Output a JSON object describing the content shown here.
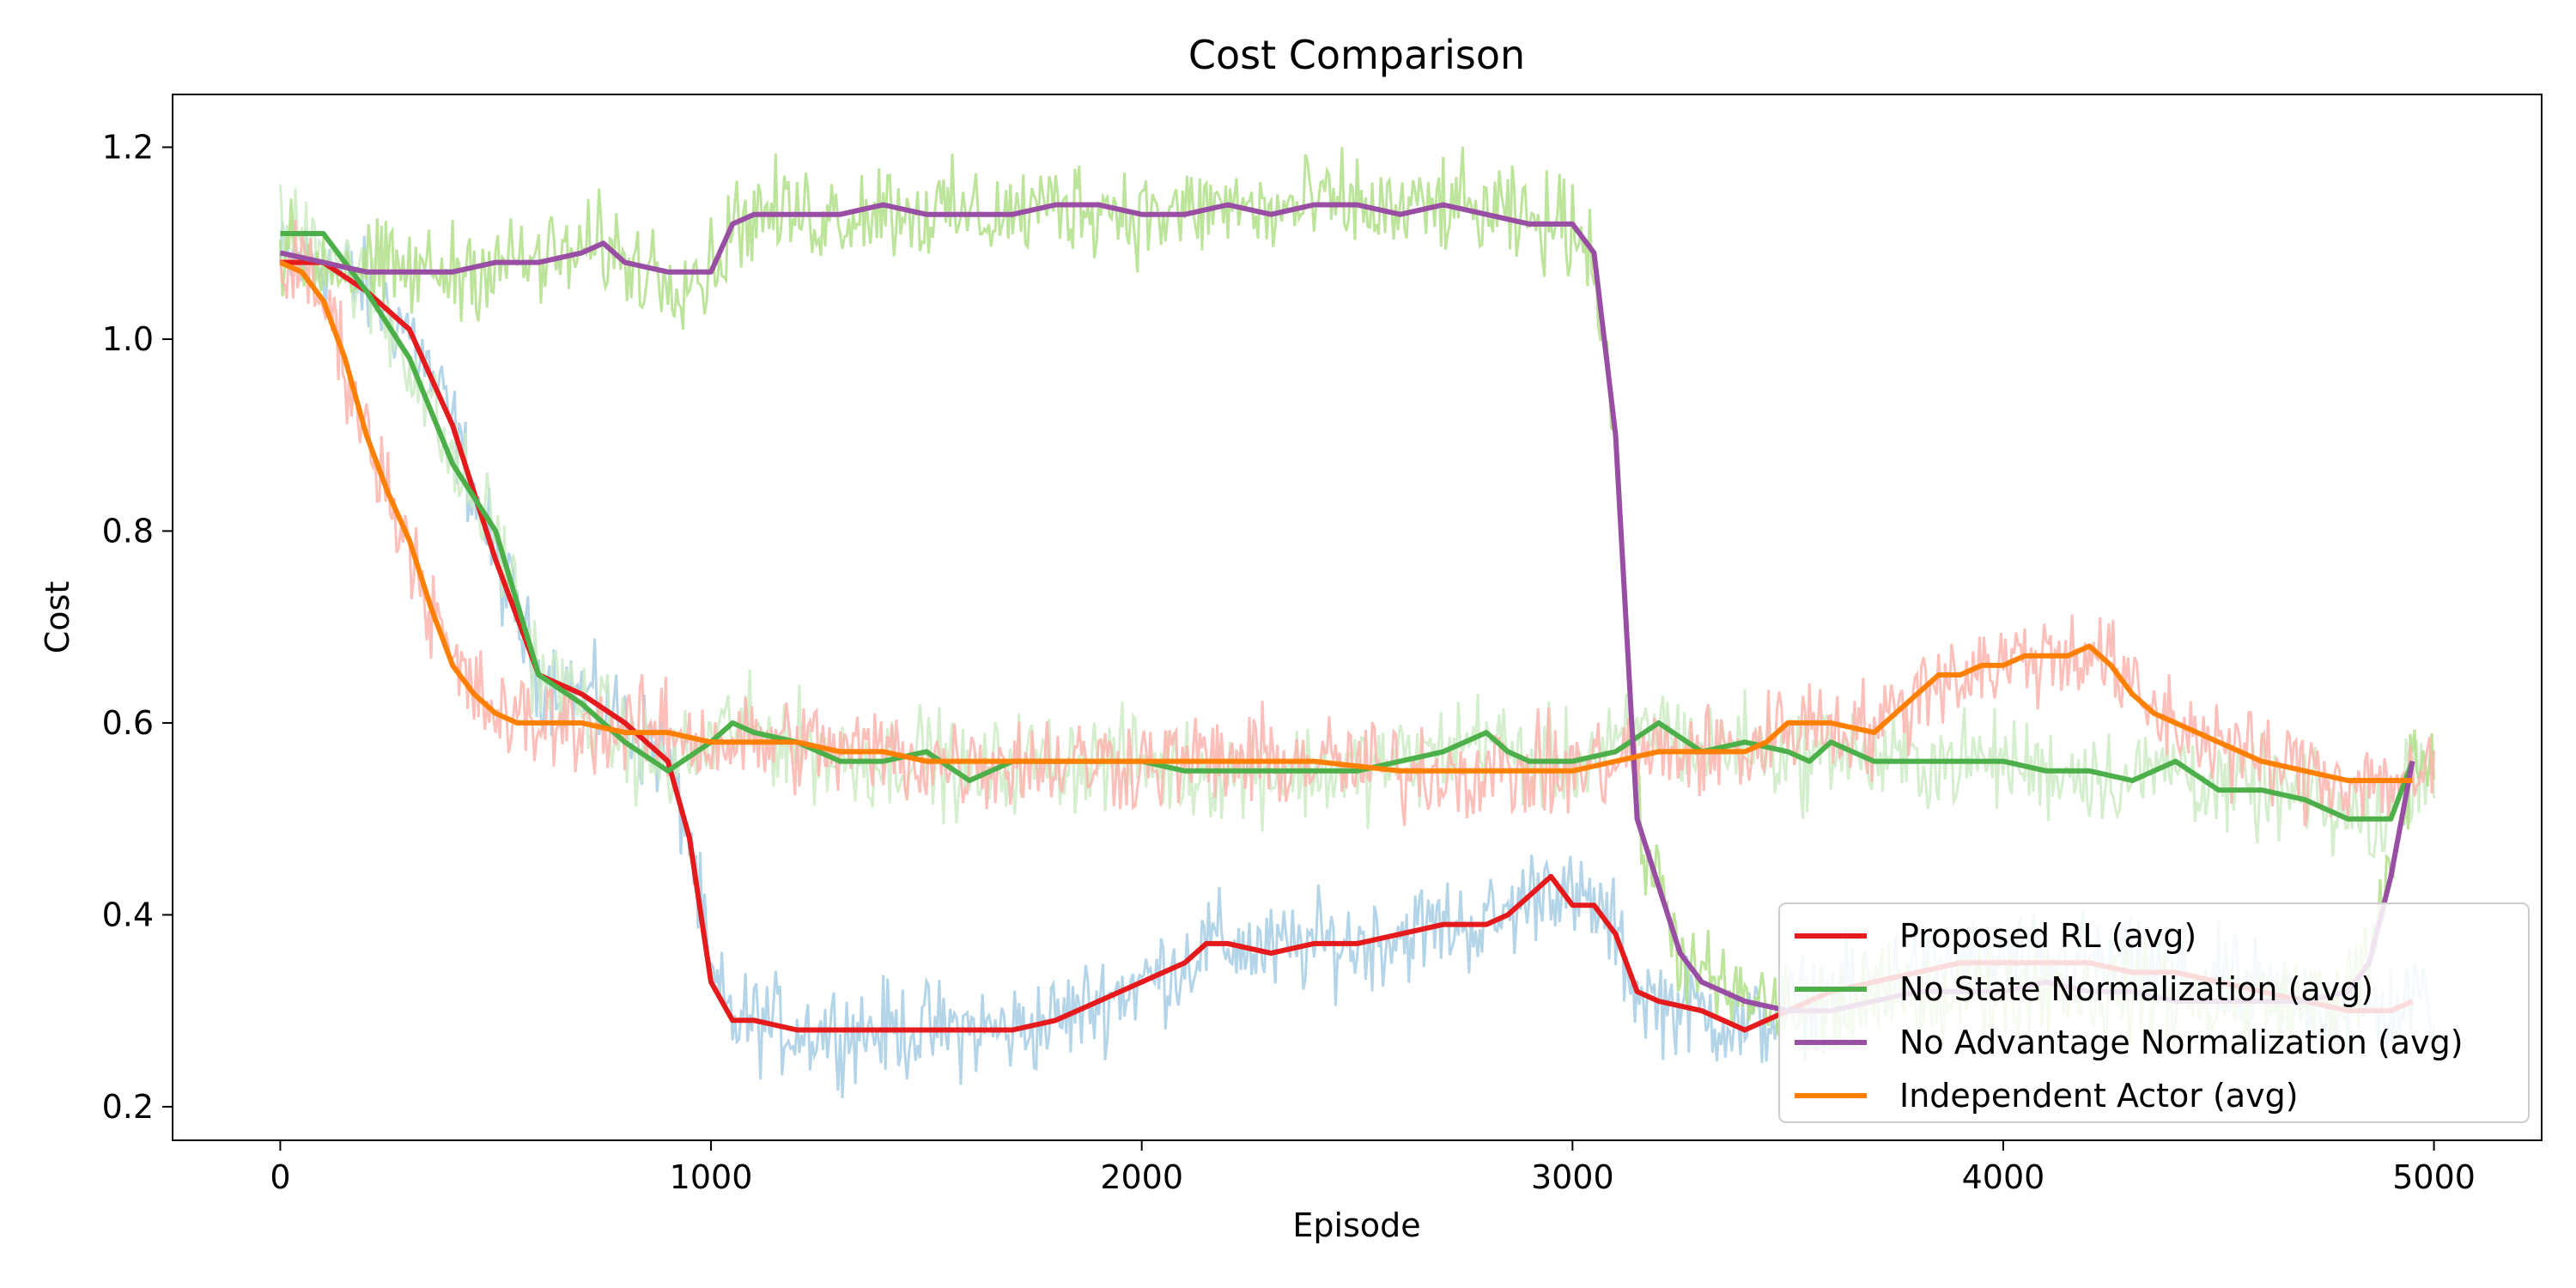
{
  "chart_data": {
    "type": "line",
    "title": "Cost Comparison",
    "xlabel": "Episode",
    "ylabel": "Cost",
    "xlim": [
      -250,
      5250
    ],
    "ylim": [
      0.165,
      1.255
    ],
    "xticks": [
      0,
      1000,
      2000,
      3000,
      4000,
      5000
    ],
    "xtick_labels": [
      "0",
      "1000",
      "2000",
      "3000",
      "4000",
      "5000"
    ],
    "yticks": [
      0.2,
      0.4,
      0.6,
      0.8,
      1.0,
      1.2
    ],
    "ytick_labels": [
      "0.2",
      "0.4",
      "0.6",
      "0.8",
      "1.0",
      "1.2"
    ],
    "grid": false,
    "legend_position": "lower-right",
    "raw_noise_amplitude": 0.025,
    "series": [
      {
        "name": "Proposed RL (avg)",
        "color": "#e41a1c",
        "raw_color": "#a6cee3",
        "x": [
          0,
          100,
          200,
          300,
          400,
          500,
          600,
          700,
          800,
          900,
          950,
          1000,
          1050,
          1100,
          1200,
          1300,
          1400,
          1500,
          1600,
          1700,
          1800,
          1900,
          2000,
          2100,
          2150,
          2200,
          2300,
          2400,
          2500,
          2600,
          2700,
          2800,
          2850,
          2900,
          2950,
          3000,
          3050,
          3100,
          3150,
          3200,
          3300,
          3400,
          3500,
          3600,
          3700,
          3800,
          3900,
          4000,
          4100,
          4200,
          4300,
          4400,
          4500,
          4600,
          4700,
          4800,
          4900,
          4950
        ],
        "y": [
          1.08,
          1.08,
          1.05,
          1.01,
          0.91,
          0.77,
          0.65,
          0.63,
          0.6,
          0.56,
          0.48,
          0.33,
          0.29,
          0.29,
          0.28,
          0.28,
          0.28,
          0.28,
          0.28,
          0.28,
          0.29,
          0.31,
          0.33,
          0.35,
          0.37,
          0.37,
          0.36,
          0.37,
          0.37,
          0.38,
          0.39,
          0.39,
          0.4,
          0.42,
          0.44,
          0.41,
          0.41,
          0.38,
          0.32,
          0.31,
          0.3,
          0.28,
          0.3,
          0.32,
          0.33,
          0.34,
          0.35,
          0.35,
          0.35,
          0.35,
          0.34,
          0.34,
          0.33,
          0.32,
          0.31,
          0.3,
          0.3,
          0.31
        ]
      },
      {
        "name": "No State Normalization (avg)",
        "color": "#4daf4a",
        "raw_color": "#ccebc5",
        "x": [
          0,
          100,
          200,
          300,
          400,
          500,
          600,
          700,
          800,
          900,
          1000,
          1050,
          1100,
          1200,
          1300,
          1400,
          1500,
          1600,
          1700,
          1800,
          1900,
          2000,
          2100,
          2200,
          2300,
          2400,
          2500,
          2600,
          2700,
          2800,
          2850,
          2900,
          3000,
          3100,
          3200,
          3300,
          3400,
          3500,
          3550,
          3600,
          3700,
          3800,
          3900,
          4000,
          4100,
          4200,
          4300,
          4400,
          4500,
          4600,
          4700,
          4800,
          4900,
          4950
        ],
        "y": [
          1.11,
          1.11,
          1.05,
          0.98,
          0.87,
          0.8,
          0.65,
          0.62,
          0.58,
          0.55,
          0.58,
          0.6,
          0.59,
          0.58,
          0.56,
          0.56,
          0.57,
          0.54,
          0.56,
          0.56,
          0.56,
          0.56,
          0.55,
          0.55,
          0.55,
          0.55,
          0.55,
          0.56,
          0.57,
          0.59,
          0.57,
          0.56,
          0.56,
          0.57,
          0.6,
          0.57,
          0.58,
          0.57,
          0.56,
          0.58,
          0.56,
          0.56,
          0.56,
          0.56,
          0.55,
          0.55,
          0.54,
          0.56,
          0.53,
          0.53,
          0.52,
          0.5,
          0.5,
          0.56
        ]
      },
      {
        "name": "No Advantage Normalization (avg)",
        "color": "#984ea3",
        "raw_color": "#b2df8a",
        "x": [
          0,
          100,
          200,
          300,
          400,
          500,
          600,
          700,
          750,
          800,
          900,
          1000,
          1050,
          1100,
          1200,
          1300,
          1400,
          1500,
          1600,
          1700,
          1800,
          1900,
          2000,
          2100,
          2200,
          2300,
          2400,
          2500,
          2600,
          2700,
          2800,
          2900,
          3000,
          3050,
          3100,
          3150,
          3200,
          3250,
          3300,
          3400,
          3500,
          3600,
          3700,
          3800,
          3900,
          4000,
          4100,
          4200,
          4300,
          4400,
          4500,
          4600,
          4700,
          4800,
          4850,
          4900,
          4950
        ],
        "y": [
          1.09,
          1.08,
          1.07,
          1.07,
          1.07,
          1.08,
          1.08,
          1.09,
          1.1,
          1.08,
          1.07,
          1.07,
          1.12,
          1.13,
          1.13,
          1.13,
          1.14,
          1.13,
          1.13,
          1.13,
          1.14,
          1.14,
          1.13,
          1.13,
          1.14,
          1.13,
          1.14,
          1.14,
          1.13,
          1.14,
          1.13,
          1.12,
          1.12,
          1.09,
          0.9,
          0.5,
          0.43,
          0.36,
          0.33,
          0.31,
          0.3,
          0.3,
          0.31,
          0.32,
          0.32,
          0.32,
          0.33,
          0.32,
          0.32,
          0.31,
          0.31,
          0.31,
          0.31,
          0.32,
          0.35,
          0.44,
          0.56
        ]
      },
      {
        "name": "Independent Actor (avg)",
        "color": "#ff7f00",
        "raw_color": "#fbb4ae",
        "x": [
          0,
          50,
          100,
          150,
          200,
          250,
          300,
          350,
          400,
          450,
          500,
          550,
          600,
          700,
          800,
          900,
          1000,
          1100,
          1200,
          1300,
          1400,
          1500,
          1600,
          1700,
          1800,
          1900,
          2000,
          2200,
          2400,
          2600,
          2800,
          3000,
          3100,
          3200,
          3300,
          3400,
          3450,
          3500,
          3600,
          3700,
          3750,
          3800,
          3850,
          3900,
          3950,
          4000,
          4050,
          4100,
          4150,
          4200,
          4250,
          4300,
          4350,
          4400,
          4500,
          4600,
          4700,
          4800,
          4900,
          4950
        ],
        "y": [
          1.08,
          1.07,
          1.04,
          0.98,
          0.9,
          0.84,
          0.79,
          0.72,
          0.66,
          0.63,
          0.61,
          0.6,
          0.6,
          0.6,
          0.59,
          0.59,
          0.58,
          0.58,
          0.58,
          0.57,
          0.57,
          0.56,
          0.56,
          0.56,
          0.56,
          0.56,
          0.56,
          0.56,
          0.56,
          0.55,
          0.55,
          0.55,
          0.56,
          0.57,
          0.57,
          0.57,
          0.58,
          0.6,
          0.6,
          0.59,
          0.61,
          0.63,
          0.65,
          0.65,
          0.66,
          0.66,
          0.67,
          0.67,
          0.67,
          0.68,
          0.66,
          0.63,
          0.61,
          0.6,
          0.58,
          0.56,
          0.55,
          0.54,
          0.54,
          0.54
        ]
      }
    ]
  }
}
